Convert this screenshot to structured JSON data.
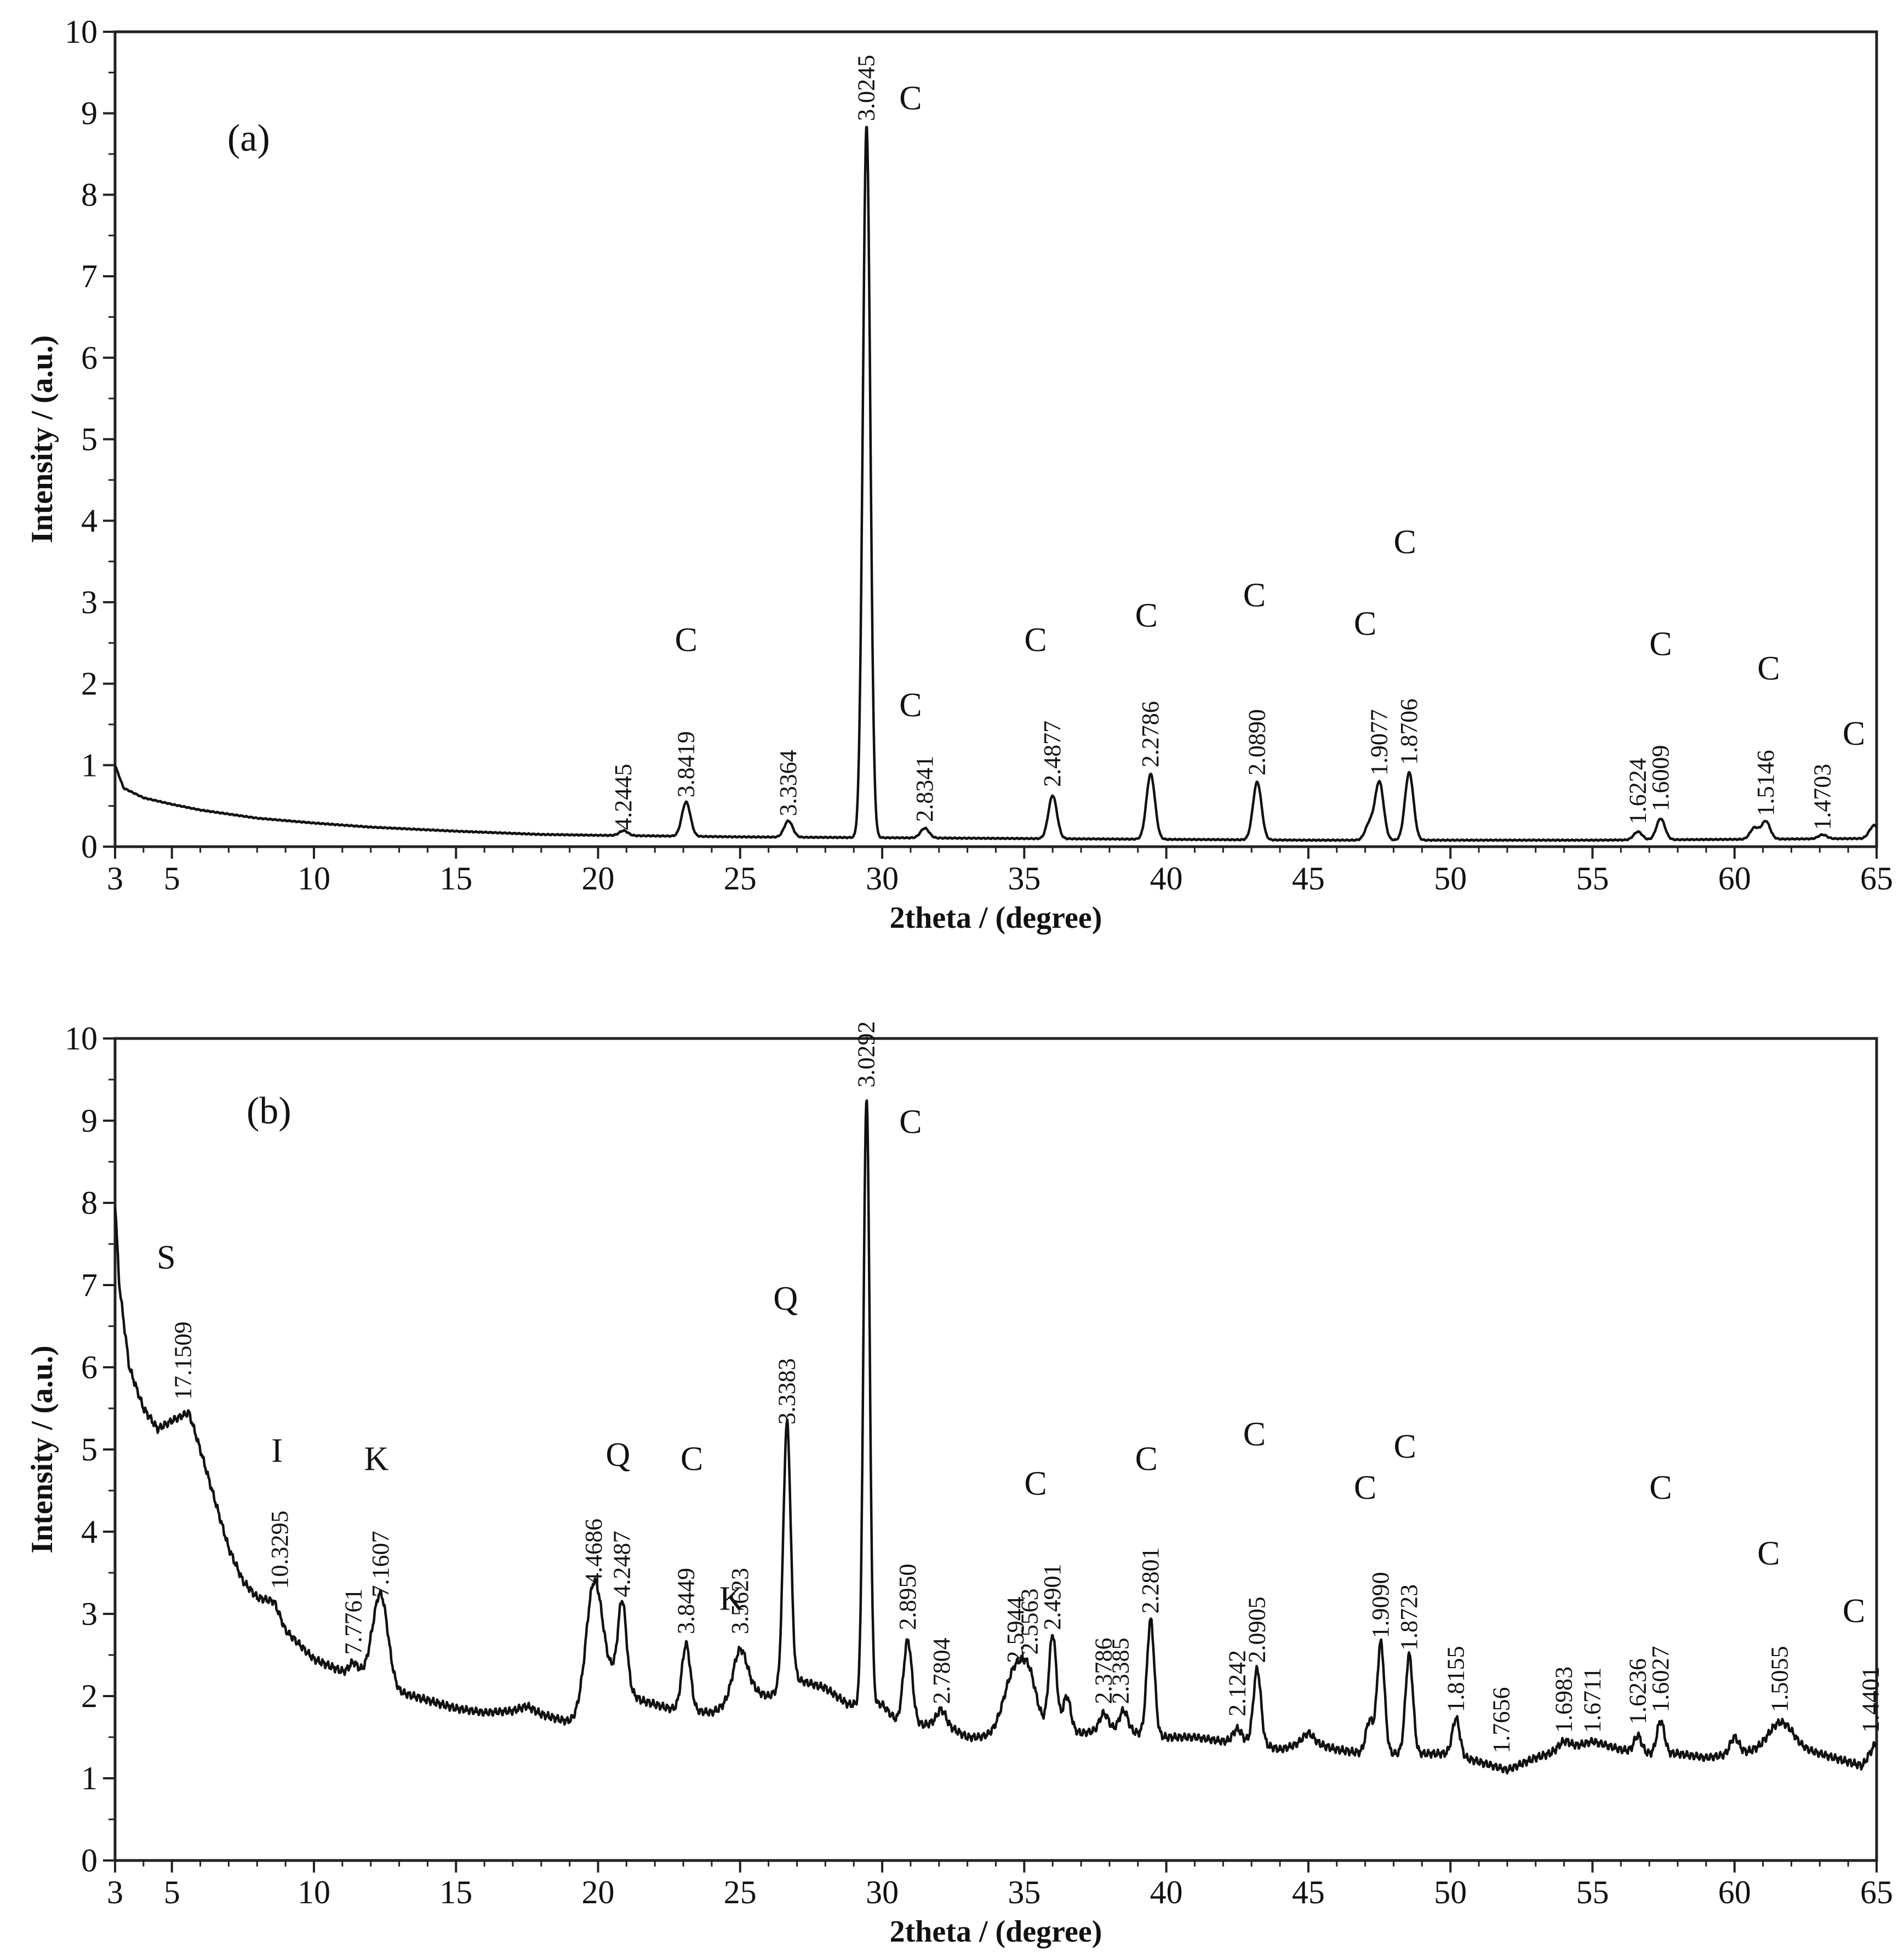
{
  "chart_data": [
    {
      "type": "line",
      "panel_label": "(a)",
      "xlabel": "2theta / (degree)",
      "ylabel": "Intensity / (a.u.)",
      "xlim": [
        3,
        65
      ],
      "ylim": [
        0,
        10
      ],
      "xticks": [
        3,
        5,
        10,
        15,
        20,
        25,
        30,
        35,
        40,
        45,
        50,
        55,
        60,
        65
      ],
      "yticks": [
        0,
        1,
        2,
        3,
        4,
        5,
        6,
        7,
        8,
        9,
        10
      ],
      "xtick_labels": [
        "3",
        "5",
        "10",
        "15",
        "20",
        "25",
        "30",
        "35",
        "40",
        "45",
        "50",
        "55",
        "60",
        "65"
      ],
      "ytick_labels": [
        "0",
        "1",
        "2",
        "3",
        "4",
        "5",
        "6",
        "7",
        "8",
        "9",
        "10"
      ],
      "baseline": [
        [
          3,
          1.0
        ],
        [
          3.3,
          0.72
        ],
        [
          4,
          0.6
        ],
        [
          5,
          0.52
        ],
        [
          6,
          0.45
        ],
        [
          7,
          0.4
        ],
        [
          8,
          0.35
        ],
        [
          10,
          0.29
        ],
        [
          12,
          0.24
        ],
        [
          15,
          0.19
        ],
        [
          18,
          0.15
        ],
        [
          20,
          0.14
        ],
        [
          25,
          0.12
        ],
        [
          30,
          0.11
        ],
        [
          35,
          0.1
        ],
        [
          40,
          0.09
        ],
        [
          45,
          0.08
        ],
        [
          50,
          0.08
        ],
        [
          55,
          0.08
        ],
        [
          60,
          0.09
        ],
        [
          64.5,
          0.1
        ],
        [
          65,
          0.15
        ]
      ],
      "peaks": [
        {
          "x": 20.9,
          "h": 0.06,
          "w": 0.15
        },
        {
          "x": 23.1,
          "h": 0.42,
          "w": 0.15
        },
        {
          "x": 26.7,
          "h": 0.2,
          "w": 0.15
        },
        {
          "x": 29.45,
          "h": 8.75,
          "w": 0.13
        },
        {
          "x": 31.5,
          "h": 0.12,
          "w": 0.15
        },
        {
          "x": 36.0,
          "h": 0.53,
          "w": 0.15
        },
        {
          "x": 39.45,
          "h": 0.8,
          "w": 0.15
        },
        {
          "x": 43.2,
          "h": 0.71,
          "w": 0.15
        },
        {
          "x": 47.15,
          "h": 0.2,
          "w": 0.15
        },
        {
          "x": 47.5,
          "h": 0.71,
          "w": 0.15
        },
        {
          "x": 48.55,
          "h": 0.83,
          "w": 0.15
        },
        {
          "x": 56.6,
          "h": 0.1,
          "w": 0.15
        },
        {
          "x": 57.4,
          "h": 0.26,
          "w": 0.15
        },
        {
          "x": 60.7,
          "h": 0.14,
          "w": 0.15
        },
        {
          "x": 61.1,
          "h": 0.22,
          "w": 0.15
        },
        {
          "x": 63.1,
          "h": 0.05,
          "w": 0.15
        },
        {
          "x": 64.9,
          "h": 0.12,
          "w": 0.15
        }
      ],
      "peak_labels": [
        {
          "x": 20.9,
          "y": 0.15,
          "text": "4.2445"
        },
        {
          "x": 23.1,
          "y": 0.55,
          "text": "3.8419"
        },
        {
          "x": 26.7,
          "y": 0.32,
          "text": "3.3364"
        },
        {
          "x": 29.45,
          "y": 8.85,
          "text": "3.0245"
        },
        {
          "x": 31.5,
          "y": 0.25,
          "text": "2.8341"
        },
        {
          "x": 36.0,
          "y": 0.68,
          "text": "2.4877"
        },
        {
          "x": 39.45,
          "y": 0.92,
          "text": "2.2786"
        },
        {
          "x": 43.2,
          "y": 0.82,
          "text": "2.0890"
        },
        {
          "x": 47.5,
          "y": 0.82,
          "text": "1.9077"
        },
        {
          "x": 48.55,
          "y": 0.95,
          "text": "1.8706"
        },
        {
          "x": 56.6,
          "y": 0.22,
          "text": "1.6224"
        },
        {
          "x": 57.4,
          "y": 0.38,
          "text": "1.6009"
        },
        {
          "x": 61.1,
          "y": 0.32,
          "text": "1.5146"
        },
        {
          "x": 63.1,
          "y": 0.15,
          "text": "1.4703"
        }
      ],
      "phase_labels": [
        {
          "x": 23.1,
          "y": 2.4,
          "text": "C"
        },
        {
          "x": 31.0,
          "y": 9.05,
          "text": "C"
        },
        {
          "x": 31.0,
          "y": 1.6,
          "text": "C"
        },
        {
          "x": 35.4,
          "y": 2.4,
          "text": "C"
        },
        {
          "x": 39.3,
          "y": 2.7,
          "text": "C"
        },
        {
          "x": 43.1,
          "y": 2.95,
          "text": "C"
        },
        {
          "x": 47.0,
          "y": 2.6,
          "text": "C"
        },
        {
          "x": 48.4,
          "y": 3.6,
          "text": "C"
        },
        {
          "x": 57.4,
          "y": 2.35,
          "text": "C"
        },
        {
          "x": 61.2,
          "y": 2.05,
          "text": "C"
        },
        {
          "x": 64.2,
          "y": 1.25,
          "text": "C"
        }
      ]
    },
    {
      "type": "line",
      "panel_label": "(b)",
      "xlabel": "2theta / (degree)",
      "ylabel": "Intensity / (a.u.)",
      "xlim": [
        3,
        65
      ],
      "ylim": [
        0,
        10
      ],
      "xticks": [
        3,
        5,
        10,
        15,
        20,
        25,
        30,
        35,
        40,
        45,
        50,
        55,
        60,
        65
      ],
      "yticks": [
        0,
        1,
        2,
        3,
        4,
        5,
        6,
        7,
        8,
        9,
        10
      ],
      "xtick_labels": [
        "3",
        "5",
        "10",
        "15",
        "20",
        "25",
        "30",
        "35",
        "40",
        "45",
        "50",
        "55",
        "60",
        "65"
      ],
      "ytick_labels": [
        "0",
        "1",
        "2",
        "3",
        "4",
        "5",
        "6",
        "7",
        "8",
        "9",
        "10"
      ],
      "baseline": [
        [
          3,
          8.0
        ],
        [
          3.15,
          7.0
        ],
        [
          3.5,
          6.0
        ],
        [
          4,
          5.5
        ],
        [
          4.5,
          5.25
        ],
        [
          5,
          5.35
        ],
        [
          5.6,
          5.45
        ],
        [
          6,
          5.0
        ],
        [
          6.5,
          4.4
        ],
        [
          7,
          3.8
        ],
        [
          7.5,
          3.4
        ],
        [
          8,
          3.2
        ],
        [
          8.6,
          3.15
        ],
        [
          9,
          2.8
        ],
        [
          10,
          2.45
        ],
        [
          11,
          2.3
        ],
        [
          11.5,
          2.25
        ],
        [
          12,
          2.35
        ],
        [
          13,
          2.05
        ],
        [
          14,
          1.95
        ],
        [
          15,
          1.85
        ],
        [
          16,
          1.8
        ],
        [
          17,
          1.82
        ],
        [
          17.5,
          1.88
        ],
        [
          18,
          1.78
        ],
        [
          19,
          1.68
        ],
        [
          19.5,
          1.65
        ],
        [
          20.5,
          2.2
        ],
        [
          21.5,
          1.95
        ],
        [
          22.5,
          1.85
        ],
        [
          24,
          1.8
        ],
        [
          25.5,
          2.05
        ],
        [
          26,
          2.0
        ],
        [
          27,
          2.2
        ],
        [
          28,
          2.1
        ],
        [
          28.8,
          1.9
        ],
        [
          30,
          1.9
        ],
        [
          30.5,
          1.7
        ],
        [
          31.5,
          1.65
        ],
        [
          32,
          1.7
        ],
        [
          33,
          1.5
        ],
        [
          34,
          1.5
        ],
        [
          35,
          1.55
        ],
        [
          36,
          1.65
        ],
        [
          37,
          1.55
        ],
        [
          38,
          1.6
        ],
        [
          39,
          1.55
        ],
        [
          40,
          1.5
        ],
        [
          41,
          1.5
        ],
        [
          42,
          1.45
        ],
        [
          43,
          1.45
        ],
        [
          44,
          1.35
        ],
        [
          45,
          1.45
        ],
        [
          46,
          1.35
        ],
        [
          47,
          1.3
        ],
        [
          48,
          1.3
        ],
        [
          49,
          1.3
        ],
        [
          50,
          1.3
        ],
        [
          51,
          1.2
        ],
        [
          52,
          1.1
        ],
        [
          53,
          1.25
        ],
        [
          54,
          1.35
        ],
        [
          55,
          1.45
        ],
        [
          56,
          1.35
        ],
        [
          57,
          1.3
        ],
        [
          58,
          1.3
        ],
        [
          59,
          1.25
        ],
        [
          60,
          1.3
        ],
        [
          61,
          1.35
        ],
        [
          62,
          1.4
        ],
        [
          63,
          1.3
        ],
        [
          64,
          1.2
        ],
        [
          64.5,
          1.15
        ],
        [
          65,
          1.45
        ]
      ],
      "peaks": [
        {
          "x": 11.4,
          "h": 0.15,
          "w": 0.15
        },
        {
          "x": 12.35,
          "h": 1.0,
          "w": 0.25
        },
        {
          "x": 19.85,
          "h": 1.55,
          "w": 0.3
        },
        {
          "x": 20.85,
          "h": 1.05,
          "w": 0.15
        },
        {
          "x": 23.1,
          "h": 0.8,
          "w": 0.15
        },
        {
          "x": 25.0,
          "h": 0.6,
          "w": 0.25
        },
        {
          "x": 26.65,
          "h": 3.2,
          "w": 0.13
        },
        {
          "x": 29.45,
          "h": 7.4,
          "w": 0.11
        },
        {
          "x": 30.9,
          "h": 1.0,
          "w": 0.15
        },
        {
          "x": 32.1,
          "h": 0.15,
          "w": 0.15
        },
        {
          "x": 34.7,
          "h": 0.8,
          "w": 0.4
        },
        {
          "x": 35.2,
          "h": 0.4,
          "w": 0.25
        },
        {
          "x": 36.0,
          "h": 1.1,
          "w": 0.13
        },
        {
          "x": 36.5,
          "h": 0.4,
          "w": 0.13
        },
        {
          "x": 37.8,
          "h": 0.2,
          "w": 0.15
        },
        {
          "x": 38.5,
          "h": 0.25,
          "w": 0.15
        },
        {
          "x": 39.45,
          "h": 1.4,
          "w": 0.13
        },
        {
          "x": 42.5,
          "h": 0.15,
          "w": 0.15
        },
        {
          "x": 43.2,
          "h": 0.9,
          "w": 0.13
        },
        {
          "x": 45.0,
          "h": 0.1,
          "w": 0.2
        },
        {
          "x": 47.15,
          "h": 0.4,
          "w": 0.13
        },
        {
          "x": 47.55,
          "h": 1.35,
          "w": 0.13
        },
        {
          "x": 48.55,
          "h": 1.2,
          "w": 0.13
        },
        {
          "x": 50.2,
          "h": 0.45,
          "w": 0.13
        },
        {
          "x": 54.0,
          "h": 0.1,
          "w": 0.2
        },
        {
          "x": 56.6,
          "h": 0.2,
          "w": 0.13
        },
        {
          "x": 57.4,
          "h": 0.4,
          "w": 0.13
        },
        {
          "x": 60.0,
          "h": 0.2,
          "w": 0.15
        },
        {
          "x": 61.6,
          "h": 0.3,
          "w": 0.4
        }
      ],
      "peak_labels": [
        {
          "x": 5.4,
          "y": 5.55,
          "text": "17.1509"
        },
        {
          "x": 8.8,
          "y": 3.25,
          "text": "10.3295"
        },
        {
          "x": 11.4,
          "y": 2.45,
          "text": "7.7761"
        },
        {
          "x": 12.35,
          "y": 3.15,
          "text": "7.1607"
        },
        {
          "x": 19.85,
          "y": 3.3,
          "text": "4.4686"
        },
        {
          "x": 20.85,
          "y": 3.15,
          "text": "4.2487"
        },
        {
          "x": 23.1,
          "y": 2.7,
          "text": "3.8449"
        },
        {
          "x": 25.0,
          "y": 2.7,
          "text": "3.5623"
        },
        {
          "x": 26.65,
          "y": 5.25,
          "text": "3.3383"
        },
        {
          "x": 29.45,
          "y": 9.35,
          "text": "3.0292"
        },
        {
          "x": 30.9,
          "y": 2.75,
          "text": "2.8950"
        },
        {
          "x": 32.1,
          "y": 1.85,
          "text": "2.7804"
        },
        {
          "x": 34.7,
          "y": 2.35,
          "text": "2.5944"
        },
        {
          "x": 35.2,
          "y": 2.45,
          "text": "2.5563"
        },
        {
          "x": 36.0,
          "y": 2.75,
          "text": "2.4901"
        },
        {
          "x": 37.8,
          "y": 1.85,
          "text": "2.3786"
        },
        {
          "x": 38.4,
          "y": 1.85,
          "text": "2.3385"
        },
        {
          "x": 39.45,
          "y": 2.95,
          "text": "2.2801"
        },
        {
          "x": 42.5,
          "y": 1.7,
          "text": "2.1242"
        },
        {
          "x": 43.2,
          "y": 2.35,
          "text": "2.0905"
        },
        {
          "x": 47.55,
          "y": 2.65,
          "text": "1.9090"
        },
        {
          "x": 48.55,
          "y": 2.5,
          "text": "1.8723"
        },
        {
          "x": 50.2,
          "y": 1.75,
          "text": "1.8155"
        },
        {
          "x": 51.8,
          "y": 1.25,
          "text": "1.7656"
        },
        {
          "x": 54.0,
          "y": 1.5,
          "text": "1.6983"
        },
        {
          "x": 55.0,
          "y": 1.5,
          "text": "1.6711"
        },
        {
          "x": 56.6,
          "y": 1.6,
          "text": "1.6236"
        },
        {
          "x": 57.4,
          "y": 1.75,
          "text": "1.6027"
        },
        {
          "x": 61.6,
          "y": 1.75,
          "text": "1.5055"
        },
        {
          "x": 64.8,
          "y": 1.5,
          "text": "1.4401"
        }
      ],
      "phase_labels": [
        {
          "x": 4.8,
          "y": 7.2,
          "text": "S"
        },
        {
          "x": 8.7,
          "y": 4.85,
          "text": "I"
        },
        {
          "x": 12.2,
          "y": 4.75,
          "text": "K"
        },
        {
          "x": 20.7,
          "y": 4.8,
          "text": "Q"
        },
        {
          "x": 23.3,
          "y": 4.75,
          "text": "C"
        },
        {
          "x": 24.7,
          "y": 3.05,
          "text": "K"
        },
        {
          "x": 26.6,
          "y": 6.7,
          "text": "Q"
        },
        {
          "x": 31.0,
          "y": 8.85,
          "text": "C"
        },
        {
          "x": 35.4,
          "y": 4.45,
          "text": "C"
        },
        {
          "x": 39.3,
          "y": 4.75,
          "text": "C"
        },
        {
          "x": 43.1,
          "y": 5.05,
          "text": "C"
        },
        {
          "x": 47.0,
          "y": 4.4,
          "text": "C"
        },
        {
          "x": 48.4,
          "y": 4.9,
          "text": "C"
        },
        {
          "x": 57.4,
          "y": 4.4,
          "text": "C"
        },
        {
          "x": 61.2,
          "y": 3.6,
          "text": "C"
        },
        {
          "x": 64.2,
          "y": 2.9,
          "text": "C"
        }
      ]
    }
  ]
}
